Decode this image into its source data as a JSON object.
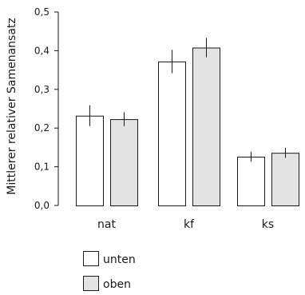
{
  "chart_data": {
    "type": "bar",
    "categories": [
      "nat",
      "kf",
      "ks"
    ],
    "series": [
      {
        "name": "unten",
        "values": [
          0.232,
          0.372,
          0.126
        ],
        "errors": [
          0.027,
          0.03,
          0.013
        ],
        "color": "#ffffff"
      },
      {
        "name": "oben",
        "values": [
          0.223,
          0.408,
          0.136
        ],
        "errors": [
          0.018,
          0.025,
          0.013
        ],
        "color": "#e3e3e3"
      }
    ],
    "title": "",
    "xlabel": "",
    "ylabel": "Mittlerer relativer Samenansatz",
    "ylim": [
      0,
      0.5
    ],
    "yticks": [
      "0,0",
      "0,1",
      "0,2",
      "0,3",
      "0,4",
      "0,5"
    ],
    "legend_position": "bottom-left",
    "grid": false
  }
}
